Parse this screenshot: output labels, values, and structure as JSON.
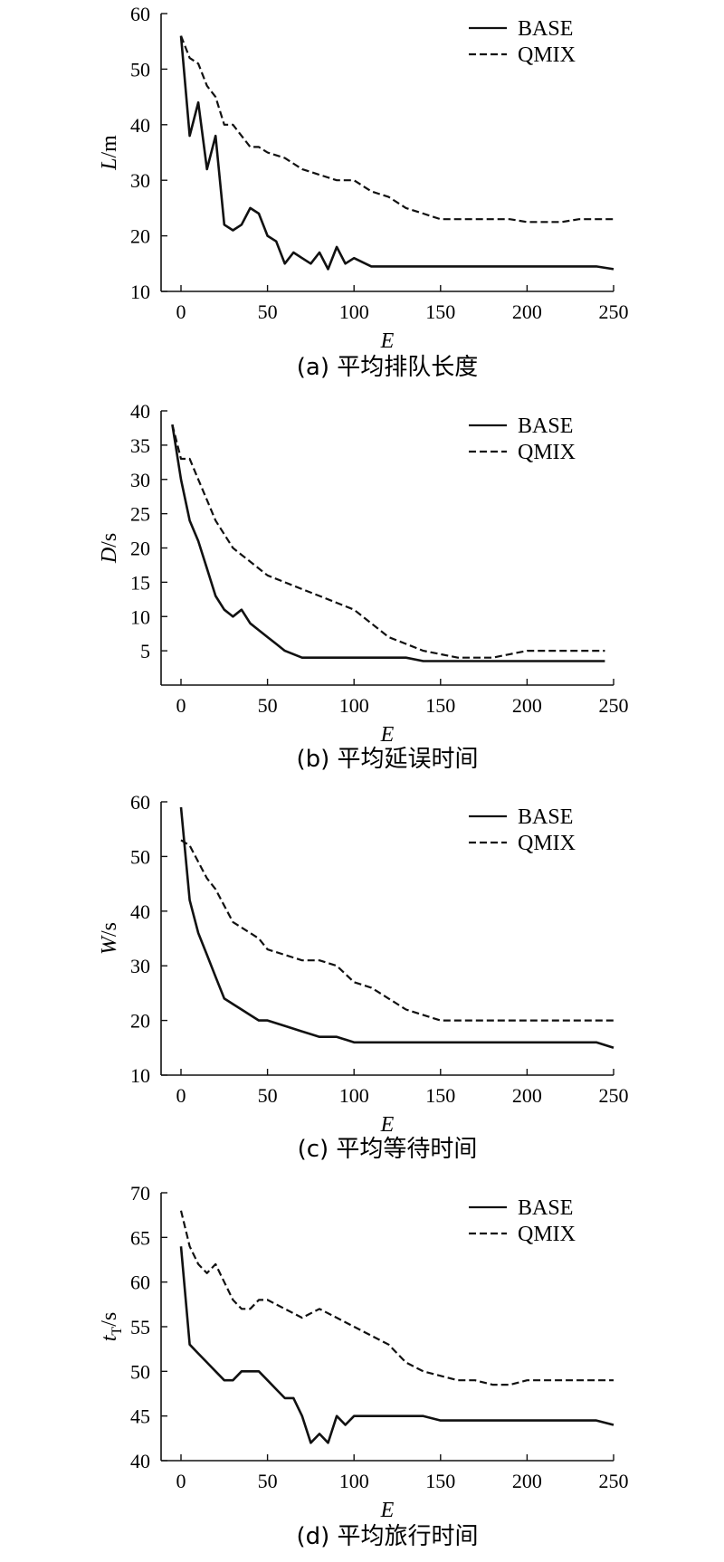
{
  "chart_data": [
    {
      "type": "line",
      "caption": "(a) 平均排队长度",
      "xlabel": "E",
      "ylabel_italic": "L",
      "ylabel_unit": "/m",
      "xlim": [
        0,
        250
      ],
      "ylim": [
        10,
        60
      ],
      "xticks": [
        0,
        50,
        100,
        150,
        200,
        250
      ],
      "yticks": [
        10,
        20,
        30,
        40,
        50,
        60
      ],
      "legend": "top-right",
      "series": [
        {
          "name": "BASE",
          "style": "solid",
          "x": [
            0,
            5,
            10,
            15,
            20,
            25,
            30,
            35,
            40,
            45,
            50,
            55,
            60,
            65,
            70,
            75,
            80,
            85,
            90,
            95,
            100,
            110,
            120,
            130,
            140,
            150,
            160,
            170,
            180,
            190,
            200,
            210,
            220,
            230,
            240,
            250
          ],
          "y": [
            56,
            38,
            44,
            32,
            38,
            22,
            21,
            22,
            25,
            24,
            20,
            19,
            15,
            17,
            16,
            15,
            17,
            14,
            18,
            15,
            16,
            14.5,
            14.5,
            14.5,
            14.5,
            14.5,
            14.5,
            14.5,
            14.5,
            14.5,
            14.5,
            14.5,
            14.5,
            14.5,
            14.5,
            14
          ]
        },
        {
          "name": "QMIX",
          "style": "dashed",
          "x": [
            0,
            5,
            10,
            15,
            20,
            25,
            30,
            35,
            40,
            45,
            50,
            60,
            70,
            80,
            90,
            100,
            110,
            120,
            130,
            140,
            150,
            160,
            170,
            180,
            190,
            200,
            210,
            220,
            230,
            240,
            250
          ],
          "y": [
            56,
            52,
            51,
            47,
            45,
            40,
            40,
            38,
            36,
            36,
            35,
            34,
            32,
            31,
            30,
            30,
            28,
            27,
            25,
            24,
            23,
            23,
            23,
            23,
            23,
            22.5,
            22.5,
            22.5,
            23,
            23,
            23
          ]
        }
      ]
    },
    {
      "type": "line",
      "caption": "(b) 平均延误时间",
      "xlabel": "E",
      "ylabel_italic": "D",
      "ylabel_unit": "/s",
      "xlim": [
        0,
        250
      ],
      "ylim": [
        0,
        40
      ],
      "xticks": [
        0,
        50,
        100,
        150,
        200,
        250
      ],
      "yticks": [
        5,
        10,
        15,
        20,
        25,
        30,
        35,
        40
      ],
      "legend": "top-right",
      "series": [
        {
          "name": "BASE",
          "style": "solid",
          "x": [
            -5,
            0,
            5,
            10,
            15,
            20,
            25,
            30,
            35,
            40,
            45,
            50,
            55,
            60,
            70,
            80,
            90,
            100,
            110,
            120,
            130,
            140,
            150,
            160,
            170,
            180,
            190,
            200,
            210,
            220,
            230,
            240,
            245
          ],
          "y": [
            38,
            30,
            24,
            21,
            17,
            13,
            11,
            10,
            11,
            9,
            8,
            7,
            6,
            5,
            4,
            4,
            4,
            4,
            4,
            4,
            4,
            3.5,
            3.5,
            3.5,
            3.5,
            3.5,
            3.5,
            3.5,
            3.5,
            3.5,
            3.5,
            3.5,
            3.5
          ]
        },
        {
          "name": "QMIX",
          "style": "dashed",
          "x": [
            -5,
            0,
            5,
            10,
            15,
            20,
            25,
            30,
            35,
            40,
            50,
            60,
            70,
            80,
            90,
            100,
            110,
            120,
            130,
            140,
            150,
            160,
            170,
            180,
            190,
            200,
            210,
            220,
            230,
            240,
            245
          ],
          "y": [
            38,
            33,
            33,
            30,
            27,
            24,
            22,
            20,
            19,
            18,
            16,
            15,
            14,
            13,
            12,
            11,
            9,
            7,
            6,
            5,
            4.5,
            4,
            4,
            4,
            4.5,
            5,
            5,
            5,
            5,
            5,
            5
          ]
        }
      ]
    },
    {
      "type": "line",
      "caption": "(c) 平均等待时间",
      "xlabel": "E",
      "ylabel_italic": "W",
      "ylabel_unit": "/s",
      "xlim": [
        0,
        250
      ],
      "ylim": [
        10,
        60
      ],
      "xticks": [
        0,
        50,
        100,
        150,
        200,
        250
      ],
      "yticks": [
        10,
        20,
        30,
        40,
        50,
        60
      ],
      "legend": "top-right",
      "series": [
        {
          "name": "BASE",
          "style": "solid",
          "x": [
            0,
            5,
            10,
            15,
            20,
            25,
            30,
            35,
            40,
            45,
            50,
            60,
            70,
            80,
            90,
            100,
            110,
            120,
            130,
            140,
            150,
            160,
            170,
            180,
            190,
            200,
            210,
            220,
            230,
            240,
            250
          ],
          "y": [
            59,
            42,
            36,
            32,
            28,
            24,
            23,
            22,
            21,
            20,
            20,
            19,
            18,
            17,
            17,
            16,
            16,
            16,
            16,
            16,
            16,
            16,
            16,
            16,
            16,
            16,
            16,
            16,
            16,
            16,
            15
          ]
        },
        {
          "name": "QMIX",
          "style": "dashed",
          "x": [
            0,
            5,
            10,
            15,
            20,
            25,
            30,
            35,
            40,
            45,
            50,
            60,
            70,
            80,
            90,
            100,
            110,
            120,
            130,
            140,
            150,
            160,
            170,
            180,
            190,
            200,
            210,
            220,
            230,
            240,
            250
          ],
          "y": [
            53,
            52,
            49,
            46,
            44,
            41,
            38,
            37,
            36,
            35,
            33,
            32,
            31,
            31,
            30,
            27,
            26,
            24,
            22,
            21,
            20,
            20,
            20,
            20,
            20,
            20,
            20,
            20,
            20,
            20,
            20
          ]
        }
      ]
    },
    {
      "type": "line",
      "caption": "(d) 平均旅行时间",
      "xlabel": "E",
      "ylabel_italic": "t",
      "ylabel_sub": "T",
      "ylabel_unit": "/s",
      "xlim": [
        0,
        250
      ],
      "ylim": [
        40,
        70
      ],
      "xticks": [
        0,
        50,
        100,
        150,
        200,
        250
      ],
      "yticks": [
        40,
        45,
        50,
        55,
        60,
        65,
        70
      ],
      "legend": "top-right",
      "series": [
        {
          "name": "BASE",
          "style": "solid",
          "x": [
            0,
            5,
            10,
            15,
            20,
            25,
            30,
            35,
            40,
            45,
            50,
            55,
            60,
            65,
            70,
            75,
            80,
            85,
            90,
            95,
            100,
            110,
            120,
            130,
            140,
            150,
            160,
            170,
            180,
            190,
            200,
            210,
            220,
            230,
            240,
            250
          ],
          "y": [
            64,
            53,
            52,
            51,
            50,
            49,
            49,
            50,
            50,
            50,
            49,
            48,
            47,
            47,
            45,
            42,
            43,
            42,
            45,
            44,
            45,
            45,
            45,
            45,
            45,
            44.5,
            44.5,
            44.5,
            44.5,
            44.5,
            44.5,
            44.5,
            44.5,
            44.5,
            44.5,
            44
          ]
        },
        {
          "name": "QMIX",
          "style": "dashed",
          "x": [
            0,
            5,
            10,
            15,
            20,
            25,
            30,
            35,
            40,
            45,
            50,
            60,
            70,
            80,
            90,
            100,
            110,
            120,
            130,
            140,
            150,
            160,
            170,
            180,
            190,
            200,
            210,
            220,
            230,
            240,
            250
          ],
          "y": [
            68,
            64,
            62,
            61,
            62,
            60,
            58,
            57,
            57,
            58,
            58,
            57,
            56,
            57,
            56,
            55,
            54,
            53,
            51,
            50,
            49.5,
            49,
            49,
            48.5,
            48.5,
            49,
            49,
            49,
            49,
            49,
            49
          ]
        }
      ]
    }
  ]
}
